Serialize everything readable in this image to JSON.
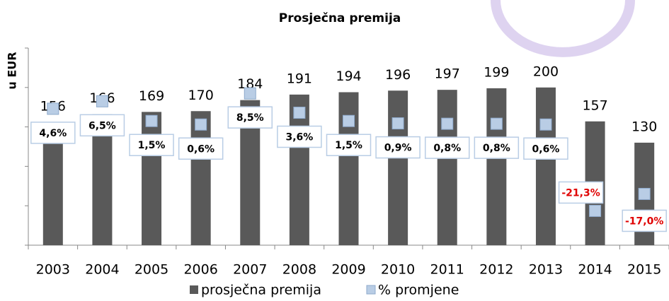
{
  "chart_data": {
    "type": "bar_line",
    "title": "Prosječna premija",
    "y_label": "u EUR",
    "categories": [
      "2003",
      "2004",
      "2005",
      "2006",
      "2007",
      "2008",
      "2009",
      "2010",
      "2011",
      "2012",
      "2013",
      "2014",
      "2015"
    ],
    "series": [
      {
        "name": "prosječna premija",
        "type": "bar",
        "color": "#595959",
        "values": [
          156,
          166,
          169,
          170,
          184,
          191,
          194,
          196,
          197,
          199,
          200,
          157,
          130
        ]
      },
      {
        "name": "% promjene",
        "type": "marker",
        "axis": "y2",
        "color": "#b9cde5",
        "values": [
          4.6,
          6.5,
          1.5,
          0.6,
          8.5,
          3.6,
          1.5,
          0.9,
          0.8,
          0.8,
          0.6,
          -21.3,
          -17.0
        ],
        "value_labels": [
          "4,6%",
          "6,5%",
          "1,5%",
          "0,6%",
          "8,5%",
          "3,6%",
          "1,5%",
          "0,9%",
          "0,8%",
          "0,8%",
          "0,6%",
          "-21,3%",
          "-17,0%"
        ]
      }
    ],
    "ylim": [
      0,
      250
    ],
    "yticks": [
      0,
      50,
      100,
      150,
      200,
      250
    ],
    "y2lim": [
      -30,
      20
    ],
    "legend": "bottom"
  }
}
